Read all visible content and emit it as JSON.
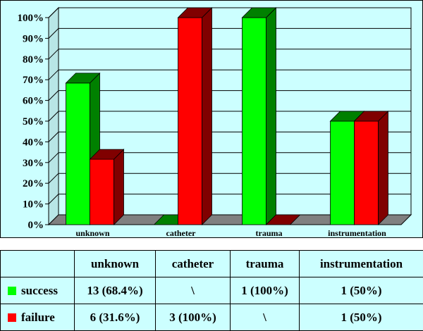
{
  "chart_data": {
    "type": "bar",
    "title": "",
    "xlabel": "",
    "ylabel": "",
    "ylim": [
      0,
      100
    ],
    "y_ticks": [
      "0%",
      "10%",
      "20%",
      "30%",
      "40%",
      "50%",
      "60%",
      "70%",
      "80%",
      "90%",
      "100%"
    ],
    "categories": [
      "unknown",
      "catheter",
      "trauma",
      "instrumentation"
    ],
    "series": [
      {
        "name": "success",
        "values": [
          68.4,
          0,
          100,
          50
        ],
        "color": "#00ff00",
        "side_color": "#008000"
      },
      {
        "name": "failure",
        "values": [
          31.6,
          100,
          0,
          50
        ],
        "color": "#ff0000",
        "side_color": "#800000"
      }
    ],
    "style": {
      "bar_3d": true,
      "grid": "horizontal",
      "background": "#ccffff",
      "floor_color": "#808080"
    }
  },
  "table": {
    "headers": [
      "unknown",
      "catheter",
      "trauma",
      "instrumentation"
    ],
    "rows": [
      {
        "label": "success",
        "color": "#00ff00",
        "cells": [
          "13 (68.4%)",
          "\\",
          "1 (100%)",
          "1 (50%)"
        ]
      },
      {
        "label": "failure",
        "color": "#ff0000",
        "cells": [
          "6 (31.6%)",
          "3 (100%)",
          "\\",
          "1 (50%)"
        ]
      }
    ]
  }
}
